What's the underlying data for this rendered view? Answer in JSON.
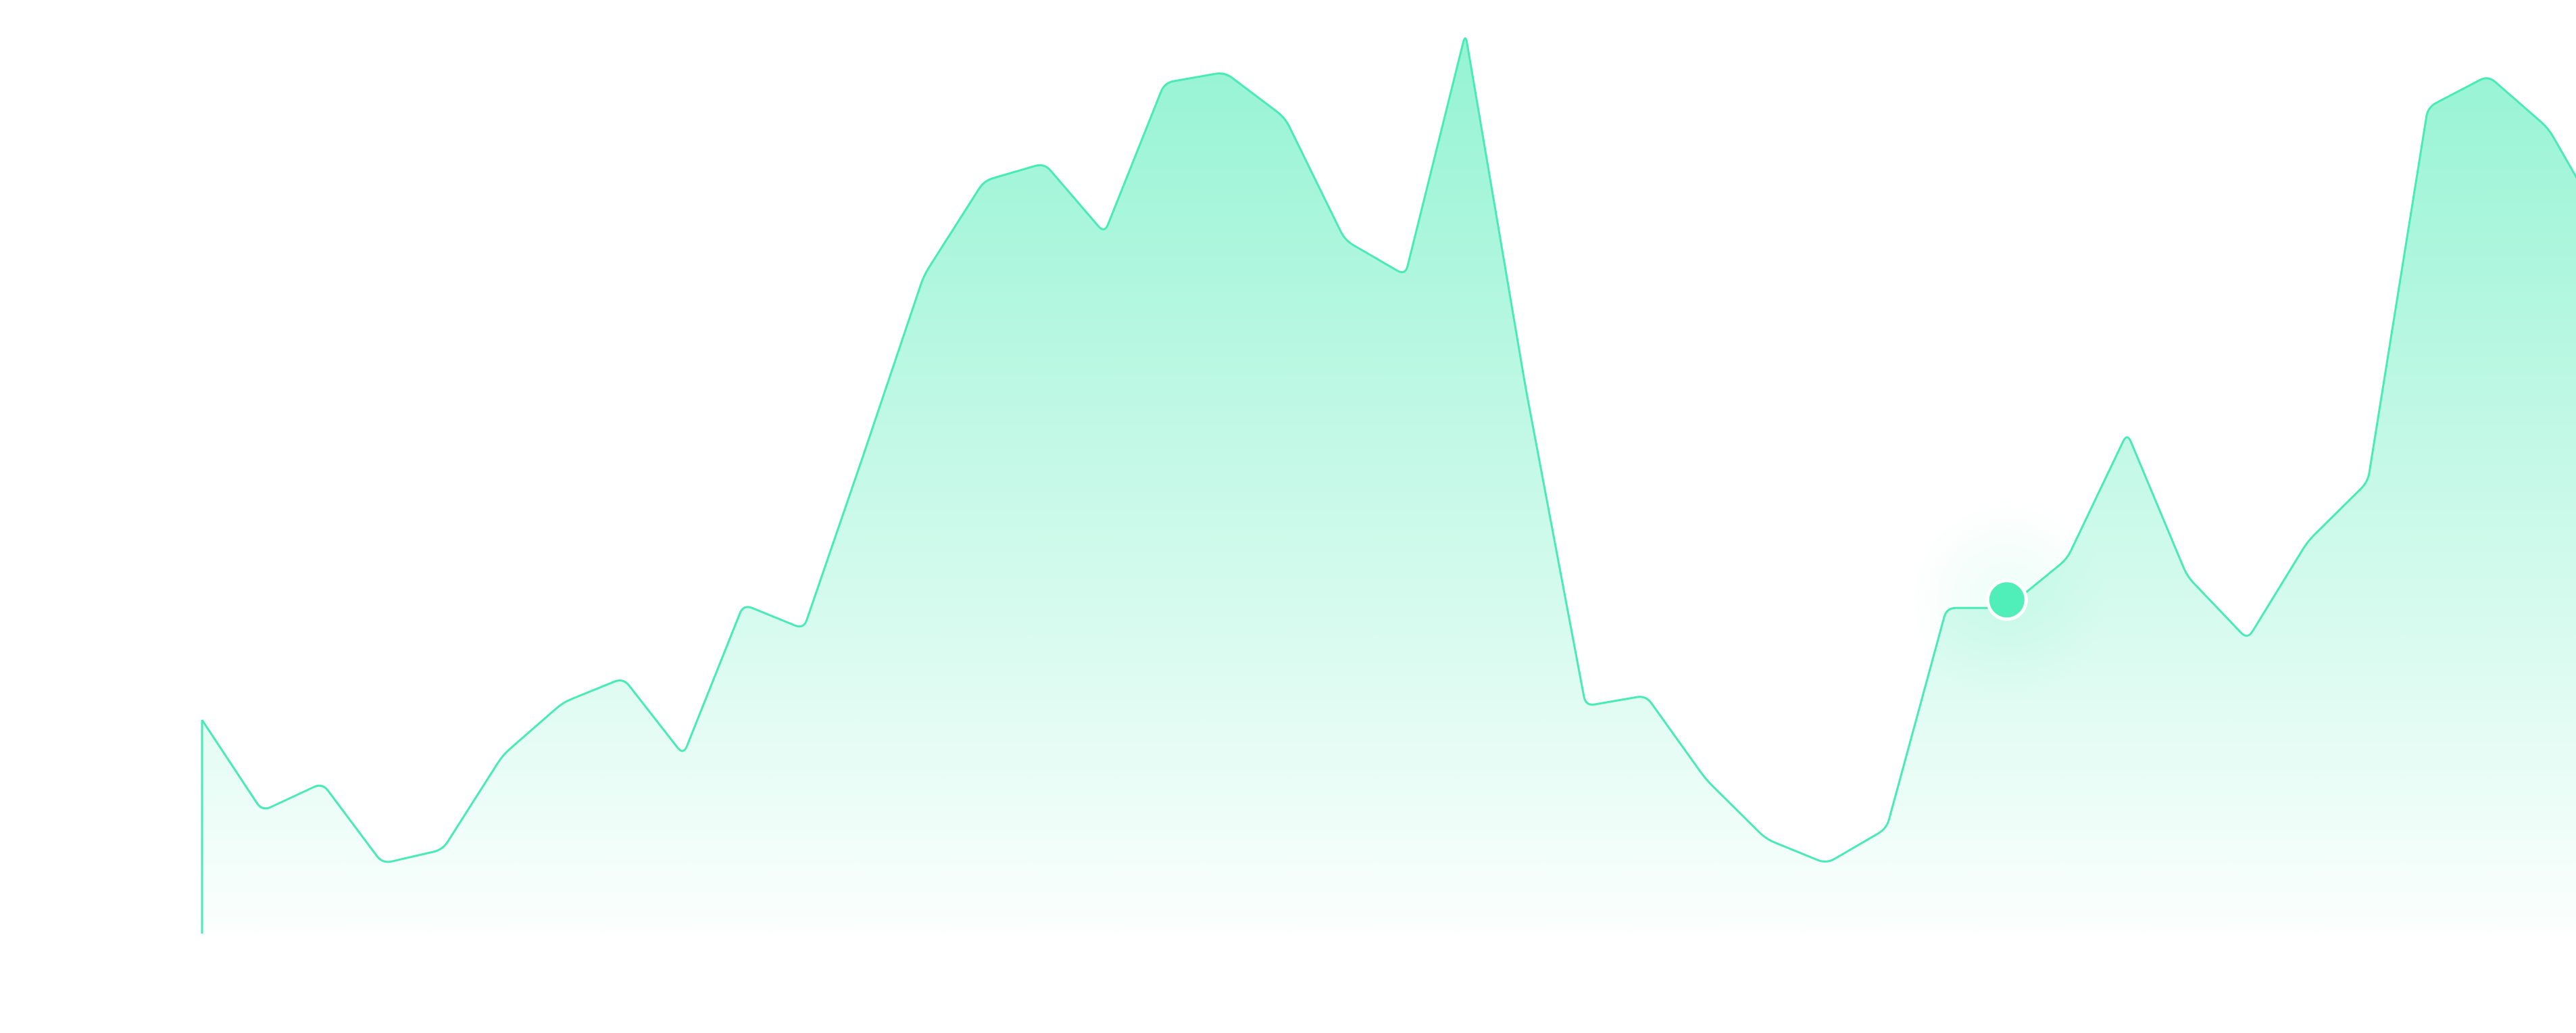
{
  "chart_data": {
    "type": "area",
    "title": "",
    "xlabel": "",
    "ylabel": "",
    "x": [
      0,
      1,
      2,
      3,
      4,
      5,
      6,
      7,
      8,
      9,
      10,
      11,
      12,
      13,
      14,
      15,
      16,
      17,
      18,
      19,
      20,
      21,
      22,
      23,
      24,
      25,
      26,
      27,
      28,
      29,
      30,
      31,
      32,
      33,
      34,
      35,
      36,
      37,
      38,
      39,
      40
    ],
    "series": [
      {
        "values": [
          61,
          35,
          43,
          20,
          24,
          51,
          66,
          73,
          51,
          94,
          87,
          137,
          188,
          215,
          220,
          200,
          243,
          246,
          233,
          198,
          188,
          257,
          156,
          65,
          68,
          44,
          27,
          20,
          30,
          93,
          93,
          107,
          143,
          102,
          84,
          112,
          129,
          236,
          245,
          230,
          200
        ],
        "color": "#47ebb3"
      }
    ],
    "highlight": {
      "index": 30,
      "color": "#50eeb8"
    },
    "ylim": [
      0,
      245
    ],
    "grid": false,
    "legend": "none"
  }
}
